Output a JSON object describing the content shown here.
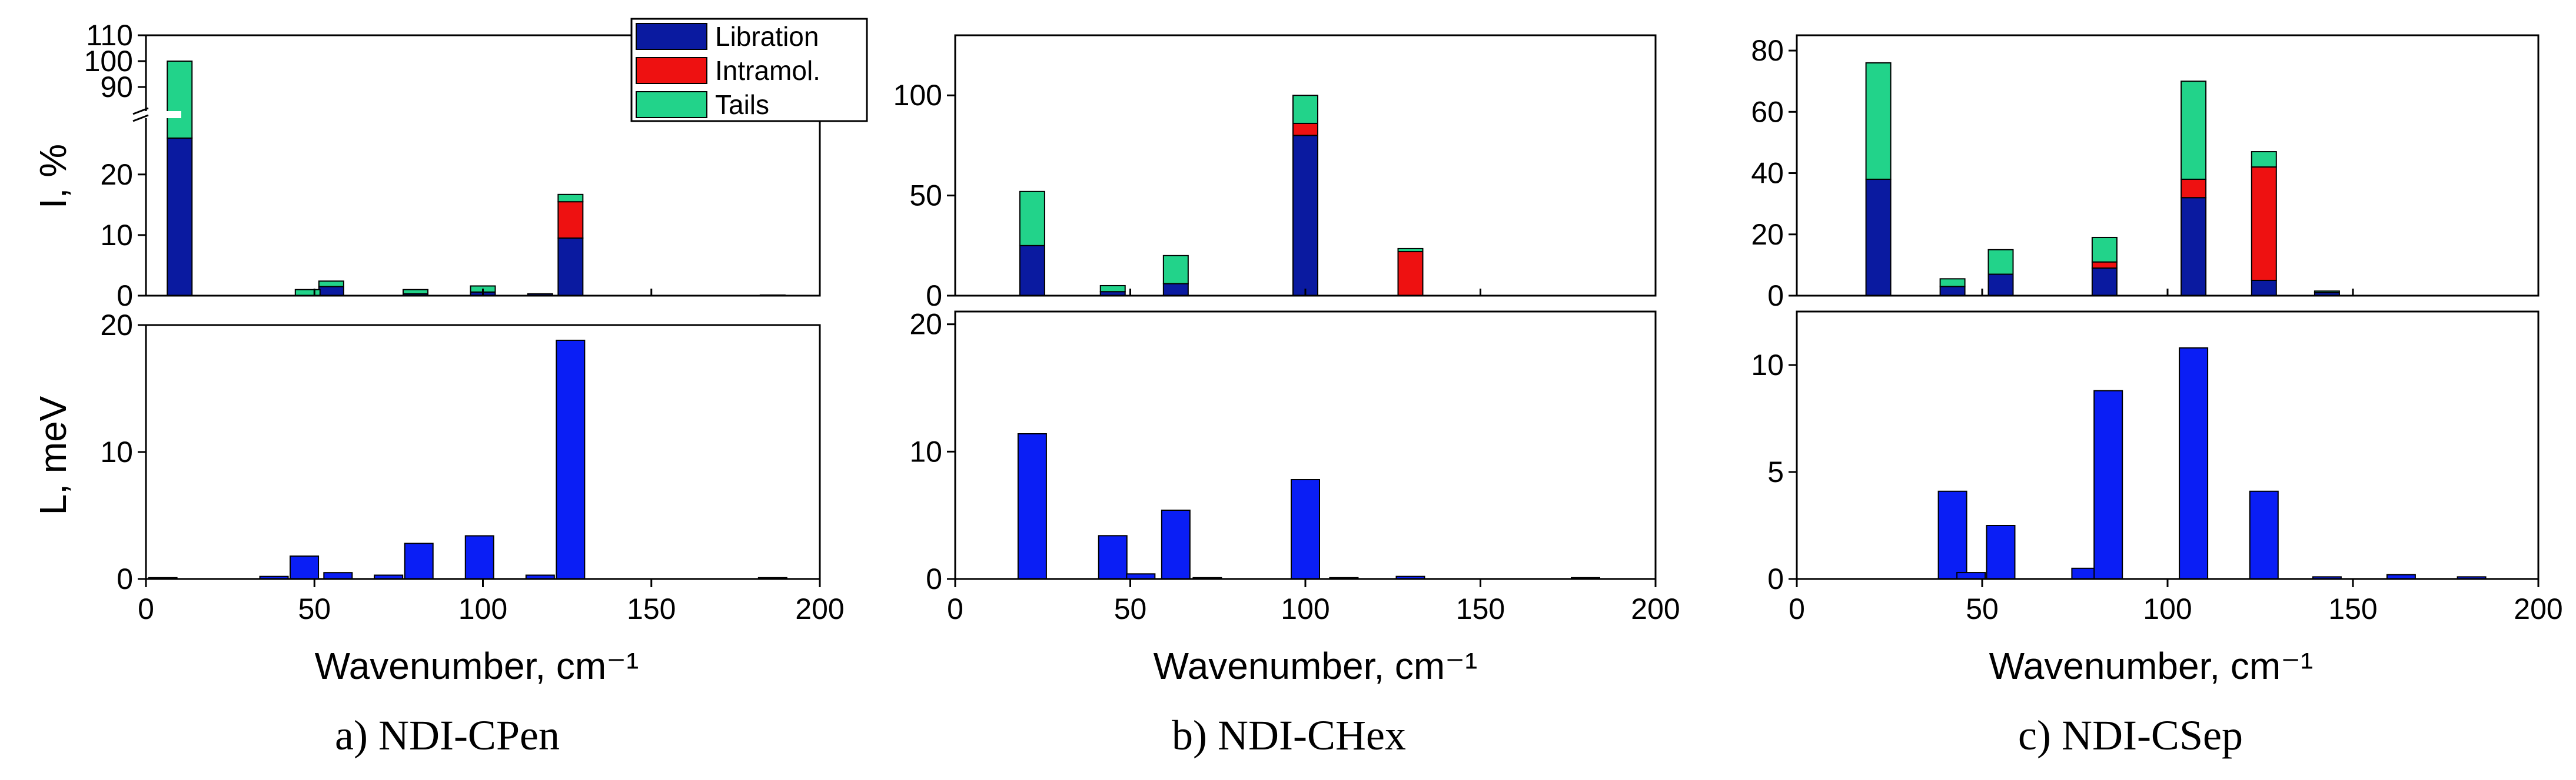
{
  "chart_data": [
    {
      "id": "a",
      "title": "a) NDI-CPen",
      "type": "bar",
      "xlabel": "Wavenumber, cm⁻¹",
      "xlim": [
        0,
        200
      ],
      "xticks": [
        0,
        50,
        100,
        150,
        200
      ],
      "top": {
        "ylabel": "I, %",
        "axis_break": true,
        "ylim_lower": [
          0,
          29
        ],
        "ylim_upper": [
          80,
          110
        ],
        "yticks_lower": [
          0,
          10,
          20
        ],
        "yticks_upper": [
          90,
          100,
          110
        ],
        "legend": [
          {
            "label": "Libration",
            "color": "#0a1aa0"
          },
          {
            "label": "Intramol.",
            "color": "#ee1111"
          },
          {
            "label": "Tails",
            "color": "#22d38a"
          }
        ],
        "series": [
          {
            "name": "Libration",
            "color": "#0a1aa0",
            "x": [
              10,
              55,
              80,
              100,
              117,
              126
            ],
            "values": [
              26,
              1.5,
              0.3,
              0.6,
              0.3,
              9.5
            ]
          },
          {
            "name": "Intramol.",
            "color": "#ee1111",
            "x": [
              10,
              55,
              80,
              100,
              117,
              126
            ],
            "values": [
              0,
              0,
              0,
              0,
              0,
              6
            ]
          },
          {
            "name": "Tails",
            "color": "#22d38a",
            "x": [
              10,
              55,
              80,
              100,
              117,
              126
            ],
            "values": [
              74,
              0.9,
              0.7,
              1.0,
              0,
              1.2
            ]
          }
        ],
        "extra_bars": [
          {
            "x": 48,
            "value": 1.0,
            "color": "#22d38a"
          },
          {
            "x": 186,
            "value": 0.1,
            "color": "#0a1aa0"
          }
        ]
      },
      "bottom": {
        "ylabel": "L, meV",
        "ylim": [
          0,
          20
        ],
        "yticks": [
          0,
          10,
          20
        ],
        "color": "#0a1ef5",
        "x": [
          5,
          38,
          47,
          57,
          72,
          81,
          99,
          117,
          126,
          186
        ],
        "values": [
          0.1,
          0.2,
          1.8,
          0.5,
          0.3,
          2.8,
          3.4,
          0.3,
          18.8,
          0.1
        ]
      }
    },
    {
      "id": "b",
      "title": "b) NDI-CHex",
      "type": "bar",
      "xlabel": "Wavenumber, cm⁻¹",
      "xlim": [
        0,
        200
      ],
      "xticks": [
        0,
        50,
        100,
        150,
        200
      ],
      "top": {
        "ylabel": "",
        "ylim": [
          0,
          130
        ],
        "yticks": [
          0,
          50,
          100
        ],
        "series": [
          {
            "name": "Libration",
            "color": "#0a1aa0",
            "x": [
              22,
              45,
              63,
              100,
              130
            ],
            "values": [
              25,
              2,
              6,
              80,
              0
            ]
          },
          {
            "name": "Intramol.",
            "color": "#ee1111",
            "x": [
              22,
              45,
              63,
              100,
              130
            ],
            "values": [
              0,
              0,
              0,
              6,
              22
            ]
          },
          {
            "name": "Tails",
            "color": "#22d38a",
            "x": [
              22,
              45,
              63,
              100,
              130
            ],
            "values": [
              27,
              3,
              14,
              14,
              1.5
            ]
          }
        ]
      },
      "bottom": {
        "ylabel": "",
        "ylim": [
          0,
          21
        ],
        "yticks": [
          0,
          10,
          20
        ],
        "color": "#0a1ef5",
        "x": [
          22,
          45,
          53,
          63,
          72,
          100,
          111,
          130,
          180
        ],
        "values": [
          11.4,
          3.4,
          0.4,
          5.4,
          0.1,
          7.8,
          0.1,
          0.2,
          0.1
        ]
      }
    },
    {
      "id": "c",
      "title": "c) NDI-CSep",
      "type": "bar",
      "xlabel": "Wavenumber, cm⁻¹",
      "xlim": [
        0,
        200
      ],
      "xticks": [
        0,
        50,
        100,
        150,
        200
      ],
      "top": {
        "ylabel": "",
        "ylim": [
          0,
          85
        ],
        "yticks": [
          0,
          20,
          40,
          60,
          80
        ],
        "series": [
          {
            "name": "Libration",
            "color": "#0a1aa0",
            "x": [
              22,
              42,
              55,
              83,
              107,
              126,
              143
            ],
            "values": [
              38,
              3,
              7,
              9,
              32,
              5,
              1
            ]
          },
          {
            "name": "Intramol.",
            "color": "#ee1111",
            "x": [
              22,
              42,
              55,
              83,
              107,
              126,
              143
            ],
            "values": [
              0,
              0,
              0,
              2,
              6,
              37,
              0
            ]
          },
          {
            "name": "Tails",
            "color": "#22d38a",
            "x": [
              22,
              42,
              55,
              83,
              107,
              126,
              143
            ],
            "values": [
              38,
              2.5,
              8,
              8,
              32,
              5,
              0.5
            ]
          }
        ]
      },
      "bottom": {
        "ylabel": "",
        "ylim": [
          0,
          12.5
        ],
        "yticks": [
          0,
          5,
          10
        ],
        "color": "#0a1ef5",
        "x": [
          42,
          47,
          55,
          78,
          84,
          107,
          126,
          143,
          163,
          182
        ],
        "values": [
          4.1,
          0.3,
          2.5,
          0.5,
          8.8,
          10.8,
          4.1,
          0.1,
          0.2,
          0.1
        ]
      }
    }
  ]
}
